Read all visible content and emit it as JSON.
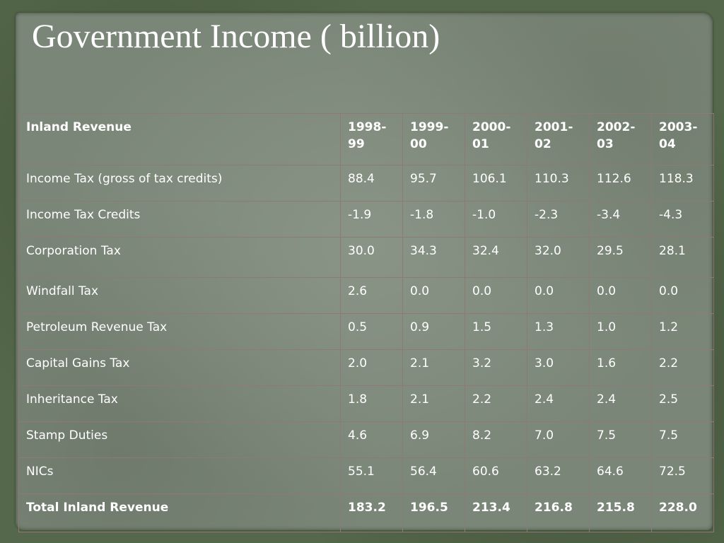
{
  "title": "Government Income ( billion)",
  "table": {
    "header": [
      "Inland Revenue",
      "1998-99",
      "1999-00",
      "2000-01",
      "2001-02",
      "2002-03",
      "2003-04"
    ],
    "header_lines": [
      [
        "Inland Revenue",
        ""
      ],
      [
        "1998-",
        "99"
      ],
      [
        "1999-",
        "00"
      ],
      [
        "2000-",
        "01"
      ],
      [
        "2001-",
        "02"
      ],
      [
        "2002-",
        "03"
      ],
      [
        "2003-",
        "04"
      ]
    ],
    "rows": [
      [
        "Income Tax (gross of tax credits)",
        "88.4",
        "95.7",
        "106.1",
        "110.3",
        "112.6",
        "118.3"
      ],
      [
        "Income Tax Credits",
        "-1.9",
        "-1.8",
        "-1.0",
        "-2.3",
        "-3.4",
        "-4.3"
      ],
      [
        "Corporation Tax",
        "30.0",
        "34.3",
        "32.4",
        "32.0",
        "29.5",
        "28.1"
      ],
      [
        "Windfall Tax",
        "2.6",
        "0.0",
        "0.0",
        "0.0",
        "0.0",
        "0.0"
      ],
      [
        "Petroleum Revenue Tax",
        "0.5",
        "0.9",
        "1.5",
        "1.3",
        "1.0",
        "1.2"
      ],
      [
        "Capital Gains Tax",
        "2.0",
        "2.1",
        "3.2",
        "3.0",
        "1.6",
        "2.2"
      ],
      [
        "Inheritance Tax",
        "1.8",
        "2.1",
        "2.2",
        "2.4",
        "2.4",
        "2.5"
      ],
      [
        "Stamp Duties",
        "4.6",
        "6.9",
        "8.2",
        "7.0",
        "7.5",
        "7.5"
      ],
      [
        "NICs",
        "55.1",
        "56.4",
        "60.6",
        "63.2",
        "64.6",
        "72.5"
      ]
    ],
    "total": [
      "Total Inland Revenue",
      "183.2",
      "196.5",
      "213.4",
      "216.8",
      "215.8",
      "228.0"
    ]
  },
  "colors": {
    "background": "#56684b",
    "slide": "#7a8677",
    "text": "#ffffff",
    "grid": "#8d7a76"
  }
}
